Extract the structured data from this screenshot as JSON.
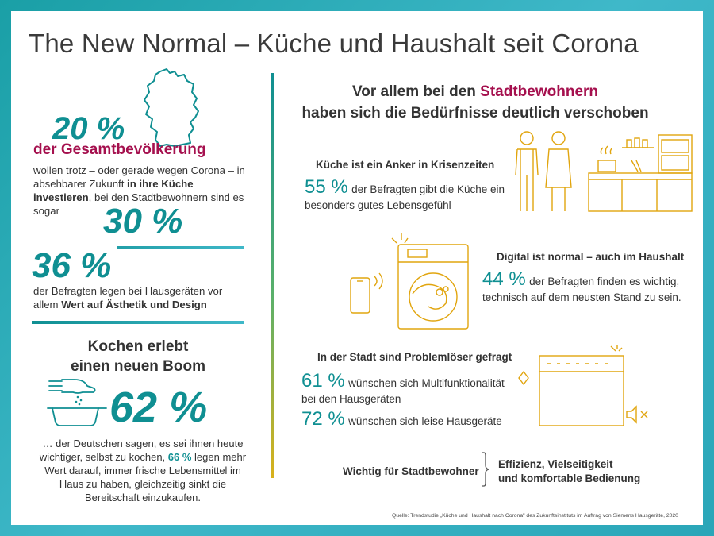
{
  "title": "The New Normal – Küche und Haushalt seit Corona",
  "left": {
    "stat1": {
      "value": "20 %",
      "label": "der Gesamtbevölkerung",
      "text_a": "wollen trotz – oder gerade wegen Corona – in absehbarer Zukunft ",
      "text_b": "in ihre Küche investieren",
      "text_c": ", bei den Stadtbewohnern sind es sogar",
      "value2": "30 %"
    },
    "stat2": {
      "value": "36 %",
      "text_a": "der Befragten legen bei Hausgeräten vor allem ",
      "text_b": "Wert auf Ästhetik und Design"
    },
    "boom": {
      "heading_1": "Kochen erlebt",
      "heading_2": "einen neuen Boom",
      "value": "62 %",
      "text_a": "… der Deutschen sagen, es sei ihnen heute wichtiger, selbst zu kochen, ",
      "text_pct": "66 %",
      "text_b": " legen mehr Wert darauf, immer frische Lebensmittel im Haus zu haben, gleichzeitig sinkt die Bereitschaft einzukaufen."
    }
  },
  "right": {
    "heading_a": "Vor allem bei den ",
    "heading_accent": "Stadtbewohnern",
    "heading_b": "haben sich die Bedürfnisse deutlich verschoben",
    "kitchen": {
      "subhead": "Küche ist ein Anker in Krisenzeiten",
      "pct": "55 %",
      "text": "der Befragten gibt die Küche ein besonders gutes Lebensgefühl"
    },
    "digital": {
      "subhead": "Digital ist normal – auch im Haushalt",
      "pct": "44 %",
      "text": "der Befragten finden es wichtig, technisch auf dem neusten Stand zu sein."
    },
    "city": {
      "subhead": "In der Stadt sind Problemlöser gefragt",
      "pct1": "61 %",
      "text1": "wünschen sich Multifunktionalität bei den Hausgeräten",
      "pct2": "72 %",
      "text2": "wünschen sich leise Hausgeräte"
    },
    "important": {
      "label": "Wichtig für Stadtbewohner",
      "value_1": "Effizienz, Vielseitigkeit",
      "value_2": "und komfortable Bedienung"
    }
  },
  "source": "Quelle: Trendstudie „Küche und Haushalt nach Corona\" des Zukunftsinstituts im Auftrag von Siemens Hausgeräte, 2020",
  "colors": {
    "teal": "#0f8f92",
    "berry": "#a5104e",
    "accent_yellow": "#e1a50e",
    "frame": "#2aa6b8"
  }
}
